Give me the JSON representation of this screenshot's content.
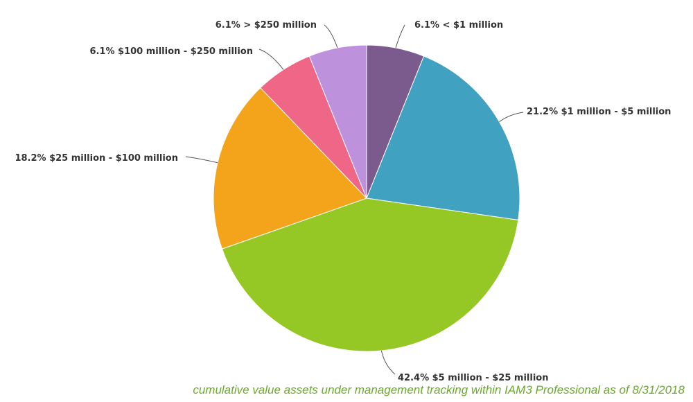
{
  "chart_data": {
    "type": "pie",
    "slices": [
      {
        "label": "6.1% < $1 million",
        "value": 6.1,
        "color": "#7b5b8e"
      },
      {
        "label": "21.2% $1 million - $5 million",
        "value": 21.2,
        "color": "#41a1c1"
      },
      {
        "label": "42.4% $5 million - $25 million",
        "value": 42.4,
        "color": "#95c824"
      },
      {
        "label": "18.2% $25 million - $100 million",
        "value": 18.2,
        "color": "#f4a41a"
      },
      {
        "label": "6.1% $100 million - $250 million",
        "value": 6.1,
        "color": "#ef6686"
      },
      {
        "label": "6.1% > $250 million",
        "value": 6.1,
        "color": "#be91dd"
      }
    ],
    "start": "12 o'clock",
    "direction": "clockwise",
    "legend": "none (slices labeled directly)"
  },
  "caption": "cumulative value assets under management tracking within IAM3 Professional as of 8/31/2018"
}
